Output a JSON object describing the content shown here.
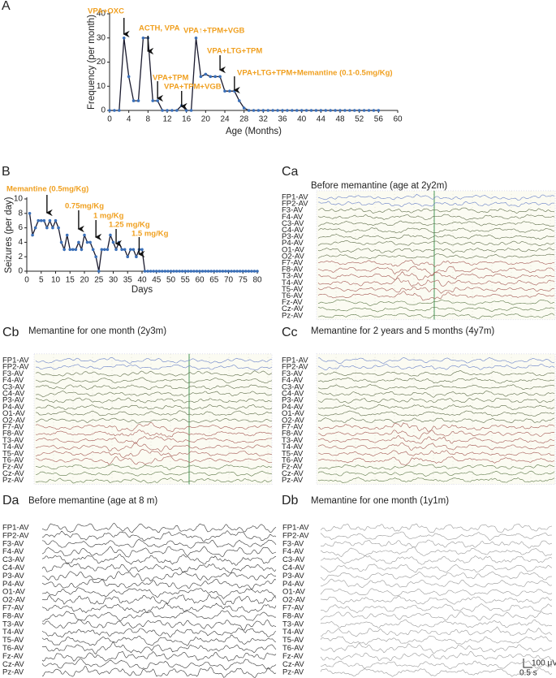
{
  "chart_data": [
    {
      "type": "line",
      "letter": "A",
      "ylabel": "Frequency  (per month)",
      "xlabel": "Age (Months)",
      "color": "#3a6fb8",
      "line_color": "#1a1a2e",
      "x": [
        0,
        1,
        2,
        3,
        4,
        5,
        6,
        7,
        8,
        9,
        10,
        11,
        12,
        13,
        14,
        15,
        16,
        17,
        18,
        19,
        20,
        21,
        22,
        23,
        24,
        25,
        26,
        27,
        28,
        29,
        30,
        31,
        32,
        33,
        34,
        35,
        36,
        37,
        38,
        39,
        40,
        41,
        42,
        43,
        44,
        45,
        46,
        47,
        48,
        49,
        50,
        51,
        52,
        53,
        54,
        55,
        56
      ],
      "values": [
        0,
        0,
        0,
        30,
        14,
        4,
        4,
        30,
        30,
        4,
        4,
        0,
        0,
        0,
        0,
        2,
        0,
        0,
        30,
        14,
        15,
        14,
        14,
        14,
        8,
        8,
        8,
        4,
        1,
        0,
        0,
        0,
        0,
        0,
        0,
        0,
        0,
        0,
        0,
        0,
        0,
        0,
        0,
        0,
        0,
        0,
        0,
        0,
        0,
        0,
        0,
        0,
        0,
        0,
        0,
        0,
        0
      ],
      "xlim": [
        0,
        60
      ],
      "xticks": [
        0,
        4,
        8,
        12,
        16,
        20,
        24,
        28,
        32,
        36,
        40,
        44,
        48,
        52,
        56,
        60
      ],
      "ylim": [
        0,
        40
      ],
      "yticks": [
        0,
        10,
        20,
        30,
        40
      ],
      "annotations": [
        {
          "text": "VPA+OXC",
          "x": 3
        },
        {
          "text": "ACTH, VPA",
          "x": 8
        },
        {
          "text": "VPA+TPM",
          "x": 10
        },
        {
          "text": "VPA+TPM+VGB",
          "x": 15
        },
        {
          "text": "VPA↑+TPM+VGB",
          "x": 18
        },
        {
          "text": "VPA+LTG+TPM",
          "x": 23
        },
        {
          "text": "VPA+LTG+TPM+Memantine (0.1-0.5mg/Kg)",
          "x": 26
        }
      ]
    },
    {
      "type": "line",
      "letter": "B",
      "ylabel": "Seizures (per day)",
      "xlabel": "Days",
      "color": "#3a6fb8",
      "line_color": "#1a1a2e",
      "x": [
        1,
        2,
        3,
        4,
        5,
        6,
        7,
        8,
        9,
        10,
        11,
        12,
        13,
        14,
        15,
        16,
        17,
        18,
        19,
        20,
        21,
        22,
        23,
        24,
        25,
        26,
        27,
        28,
        29,
        30,
        31,
        32,
        33,
        34,
        35,
        36,
        37,
        38,
        39,
        40,
        41,
        42,
        43,
        44,
        45,
        46,
        47,
        48,
        49,
        50,
        51,
        52,
        53,
        54,
        55,
        56,
        57,
        58,
        59,
        60,
        61,
        62,
        63,
        64,
        65,
        66,
        67,
        68,
        69,
        70,
        71,
        72,
        73,
        74,
        75,
        76,
        77,
        78,
        79,
        80
      ],
      "values": [
        8,
        5,
        6,
        7,
        7,
        7,
        6,
        7,
        6,
        7,
        6,
        4,
        3,
        5,
        3,
        3,
        3,
        4,
        3,
        5,
        4,
        4,
        3,
        2,
        0,
        3,
        3,
        3,
        5,
        4,
        3,
        4,
        3,
        3,
        2,
        3,
        3,
        2,
        3,
        3,
        0,
        0,
        0,
        0,
        0,
        0,
        0,
        0,
        0,
        0,
        0,
        0,
        0,
        0,
        0,
        0,
        0,
        0,
        0,
        0,
        0,
        0,
        0,
        0,
        0,
        0,
        0,
        0,
        0,
        0,
        0,
        0,
        0,
        0,
        0,
        0,
        0,
        0,
        0,
        0
      ],
      "xlim": [
        0,
        80
      ],
      "xticks": [
        0,
        5,
        10,
        15,
        20,
        25,
        30,
        35,
        40,
        45,
        50,
        55,
        60,
        65,
        70,
        75,
        80
      ],
      "ylim": [
        0,
        10
      ],
      "yticks": [
        0,
        2,
        4,
        6,
        8,
        10
      ],
      "annotations": [
        {
          "text": "Memantine (0.5mg/Kg)",
          "x": 7
        },
        {
          "text": "0.75mg/Kg",
          "x": 18
        },
        {
          "text": "1 mg/Kg",
          "x": 24
        },
        {
          "text": "1.25 mg/Kg",
          "x": 31
        },
        {
          "text": "1.5 mg/Kg",
          "x": 39
        }
      ]
    }
  ],
  "eeg": [
    {
      "letter": "Ca",
      "title": "Before memantine (age at 2y2m)",
      "channels": [
        "FP1-AV",
        "FP2-AV",
        "F3-AV",
        "F4-AV",
        "C3-AV",
        "C4-AV",
        "P3-AV",
        "P4-AV",
        "O1-AV",
        "O2-AV",
        "F7-AV",
        "F8-AV",
        "T3-AV",
        "T4-AV",
        "T5-AV",
        "T6-AV",
        "Fz-AV",
        "Cz-AV",
        "Pz-AV"
      ]
    },
    {
      "letter": "Cb",
      "title": "Memantine for one month (2y3m)",
      "channels": [
        "FP1-AV",
        "FP2-AV",
        "F3-AV",
        "F4-AV",
        "C3-AV",
        "C4-AV",
        "P3-AV",
        "P4-AV",
        "O1-AV",
        "O2-AV",
        "F7-AV",
        "F8-AV",
        "T3-AV",
        "T4-AV",
        "T5-AV",
        "T6-AV",
        "Fz-AV",
        "Cz-AV",
        "Pz-AV"
      ]
    },
    {
      "letter": "Cc",
      "title": "Memantine for 2 years and 5 months (4y7m)",
      "channels": [
        "FP1-AV",
        "FP2-AV",
        "F3-AV",
        "F4-AV",
        "C3-AV",
        "C4-AV",
        "P3-AV",
        "P4-AV",
        "O1-AV",
        "O2-AV",
        "F7-AV",
        "F8-AV",
        "T3-AV",
        "T4-AV",
        "T5-AV",
        "T6-AV",
        "Fz-AV",
        "Cz-AV",
        "Pz-AV"
      ]
    },
    {
      "letter": "Da",
      "title": "Before memantine (age at 8 m)",
      "channels": [
        "FP1-AV",
        "FP2-AV",
        "F3-AV",
        "F4-AV",
        "C3-AV",
        "C4-AV",
        "P3-AV",
        "P4-AV",
        "O1-AV",
        "O2-AV",
        "F7-AV",
        "F8-AV",
        "T3-AV",
        "T4-AV",
        "T5-AV",
        "T6-AV",
        "Fz-AV",
        "Cz-AV",
        "Pz-AV"
      ]
    },
    {
      "letter": "Db",
      "title": "Memantine for one month (1y1m)",
      "channels": [
        "FP1-AV",
        "FP2-AV",
        "F3-AV",
        "F4-AV",
        "C3-AV",
        "C4-AV",
        "P3-AV",
        "P4-AV",
        "O1-AV",
        "O2-AV",
        "F7-AV",
        "F8-AV",
        "T3-AV",
        "T4-AV",
        "T5-AV",
        "T6-AV",
        "Fz-AV",
        "Cz-AV",
        "Pz-AV"
      ]
    }
  ],
  "scale_bar": {
    "amplitude": "100 μV",
    "time": "0.5 s"
  }
}
